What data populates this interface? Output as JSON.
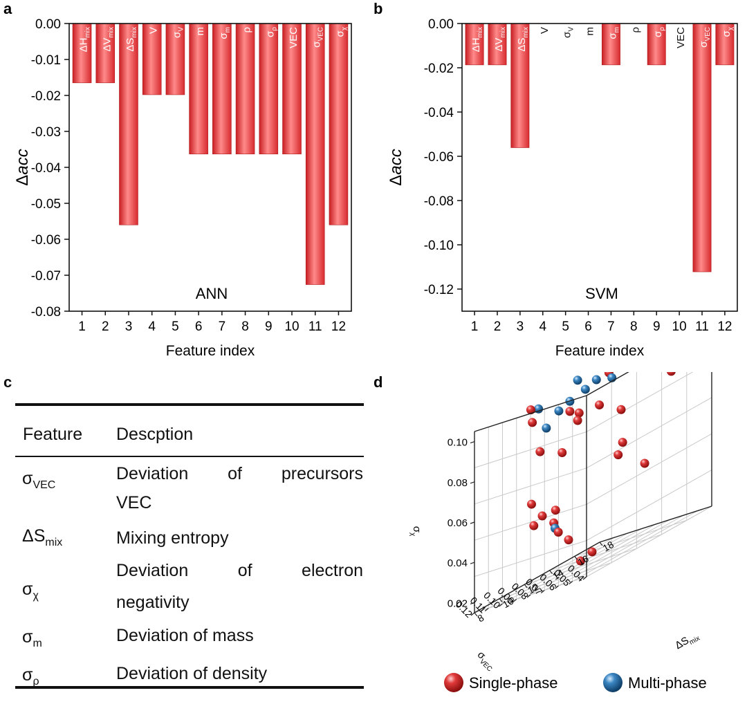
{
  "panels": {
    "a": "a",
    "b": "b",
    "c": "c",
    "d": "d"
  },
  "chart_data": [
    {
      "type": "bar",
      "title": "ANN",
      "xlabel": "Feature index",
      "ylabel": "Δacc",
      "ylim": [
        -0.08,
        0
      ],
      "yticks": [
        "0.00",
        "-0.01",
        "-0.02",
        "-0.03",
        "-0.04",
        "-0.05",
        "-0.06",
        "-0.07",
        "-0.08"
      ],
      "categories": [
        "1",
        "2",
        "3",
        "4",
        "5",
        "6",
        "7",
        "8",
        "9",
        "10",
        "11",
        "12"
      ],
      "values": [
        -0.0165,
        -0.0165,
        -0.056,
        -0.0198,
        -0.0198,
        -0.0363,
        -0.0363,
        -0.0363,
        -0.0363,
        -0.0363,
        -0.0726,
        -0.056
      ],
      "bar_labels": [
        {
          "main": "ΔH",
          "sub": "mix"
        },
        {
          "main": "ΔV",
          "sub": "mix"
        },
        {
          "main": "ΔS",
          "sub": "mix"
        },
        {
          "main": "V",
          "sub": ""
        },
        {
          "main": "σ",
          "sub": "V"
        },
        {
          "main": "m",
          "sub": ""
        },
        {
          "main": "σ",
          "sub": "m"
        },
        {
          "main": "ρ",
          "sub": ""
        },
        {
          "main": "σ",
          "sub": "ρ"
        },
        {
          "main": "VEC",
          "sub": ""
        },
        {
          "main": "σ",
          "sub": "VEC"
        },
        {
          "main": "σ",
          "sub": "χ"
        }
      ],
      "bar_color": "#e8383a"
    },
    {
      "type": "bar",
      "title": "SVM",
      "xlabel": "Feature index",
      "ylabel": "Δacc",
      "ylim": [
        -0.13,
        0
      ],
      "yticks": [
        "0.00",
        "-0.02",
        "-0.04",
        "-0.06",
        "-0.08",
        "-0.10",
        "-0.12"
      ],
      "categories": [
        "1",
        "2",
        "3",
        "4",
        "5",
        "6",
        "7",
        "8",
        "9",
        "10",
        "11",
        "12"
      ],
      "values": [
        -0.0187,
        -0.0187,
        -0.0561,
        0,
        0,
        0,
        -0.0187,
        0,
        -0.0187,
        0,
        -0.1122,
        -0.0187
      ],
      "bar_labels": [
        {
          "main": "ΔH",
          "sub": "mix"
        },
        {
          "main": "ΔV",
          "sub": "mix"
        },
        {
          "main": "ΔS",
          "sub": "mix"
        },
        {
          "main": "V",
          "sub": ""
        },
        {
          "main": "σ",
          "sub": "V"
        },
        {
          "main": "m",
          "sub": ""
        },
        {
          "main": "σ",
          "sub": "m"
        },
        {
          "main": "ρ",
          "sub": ""
        },
        {
          "main": "σ",
          "sub": "ρ"
        },
        {
          "main": "VEC",
          "sub": ""
        },
        {
          "main": "σ",
          "sub": "VEC"
        },
        {
          "main": "σ",
          "sub": "χ"
        }
      ],
      "bar_color": "#e8383a"
    },
    {
      "type": "scatter",
      "title": "",
      "axes": {
        "x": {
          "label": "σ",
          "sub": "VEC",
          "ticks": [
            "0.04",
            "0.05",
            "0.06",
            "0.07",
            "0.08",
            "0.09",
            "0.10",
            "0.11",
            "0.12"
          ]
        },
        "y": {
          "label": "ΔS",
          "sub": "mix",
          "ticks": [
            "8",
            "10",
            "12",
            "14",
            "16",
            "18"
          ]
        },
        "z": {
          "label": "σ",
          "sub": "χ",
          "ticks": [
            "0.02",
            "0.04",
            "0.06",
            "0.08",
            "0.10"
          ]
        }
      },
      "legend": [
        {
          "label": "Single-phase",
          "color": "#d42a2a"
        },
        {
          "label": "Multi-phase",
          "color": "#3b7fb3"
        }
      ],
      "series": [
        {
          "name": "Single-phase",
          "points": [
            [
              0.045,
              9.0,
              0.025
            ],
            [
              0.055,
              9.2,
              0.022
            ],
            [
              0.06,
              8.8,
              0.035
            ],
            [
              0.07,
              9.1,
              0.04
            ],
            [
              0.075,
              9.3,
              0.045
            ],
            [
              0.085,
              9.5,
              0.05
            ],
            [
              0.09,
              9.2,
              0.058
            ],
            [
              0.08,
              10,
              0.05
            ],
            [
              0.1,
              10.5,
              0.045
            ],
            [
              0.1,
              11,
              0.08
            ],
            [
              0.11,
              11.5,
              0.095
            ],
            [
              0.12,
              12.5,
              0.1
            ],
            [
              0.05,
              12,
              0.07
            ],
            [
              0.06,
              13,
              0.085
            ],
            [
              0.08,
              13.5,
              0.09
            ],
            [
              0.09,
              13,
              0.09
            ],
            [
              0.1,
              14,
              0.085
            ],
            [
              0.11,
              14.5,
              0.09
            ],
            [
              0.12,
              15,
              0.07
            ],
            [
              0.08,
              15,
              0.06
            ],
            [
              0.07,
              16,
              0.05
            ],
            [
              0.1,
              16.5,
              0.1
            ],
            [
              0.06,
              17,
              0.09
            ],
            [
              0.05,
              17.5,
              0.1
            ]
          ]
        },
        {
          "name": "Multi-phase",
          "points": [
            [
              0.075,
              9.4,
              0.042
            ],
            [
              0.1,
              11.5,
              0.09
            ],
            [
              0.11,
              12,
              0.1
            ],
            [
              0.1,
              12.5,
              0.095
            ],
            [
              0.09,
              13.5,
              0.1
            ],
            [
              0.1,
              14,
              0.105
            ],
            [
              0.11,
              14.5,
              0.095
            ],
            [
              0.08,
              14.5,
              0.1
            ],
            [
              0.09,
              15,
              0.11
            ],
            [
              0.1,
              15.5,
              0.1
            ]
          ]
        }
      ]
    }
  ],
  "feature_table": {
    "headers": {
      "feature": "Feature",
      "description": "Descption"
    },
    "rows": [
      {
        "symbol": "σ",
        "sub": "VEC",
        "desc1": "Deviation of precursors",
        "desc2": "VEC"
      },
      {
        "symbol": "ΔS",
        "sub": "mix",
        "desc1": "Mixing entropy",
        "desc2": ""
      },
      {
        "symbol": "σ",
        "sub": "χ",
        "desc1": "Deviation of electron",
        "desc2": "negativity"
      },
      {
        "symbol": "σ",
        "sub": "m",
        "desc1": "Deviation of mass",
        "desc2": ""
      },
      {
        "symbol": "σ",
        "sub": "ρ",
        "desc1": "Deviation of density",
        "desc2": ""
      }
    ]
  }
}
